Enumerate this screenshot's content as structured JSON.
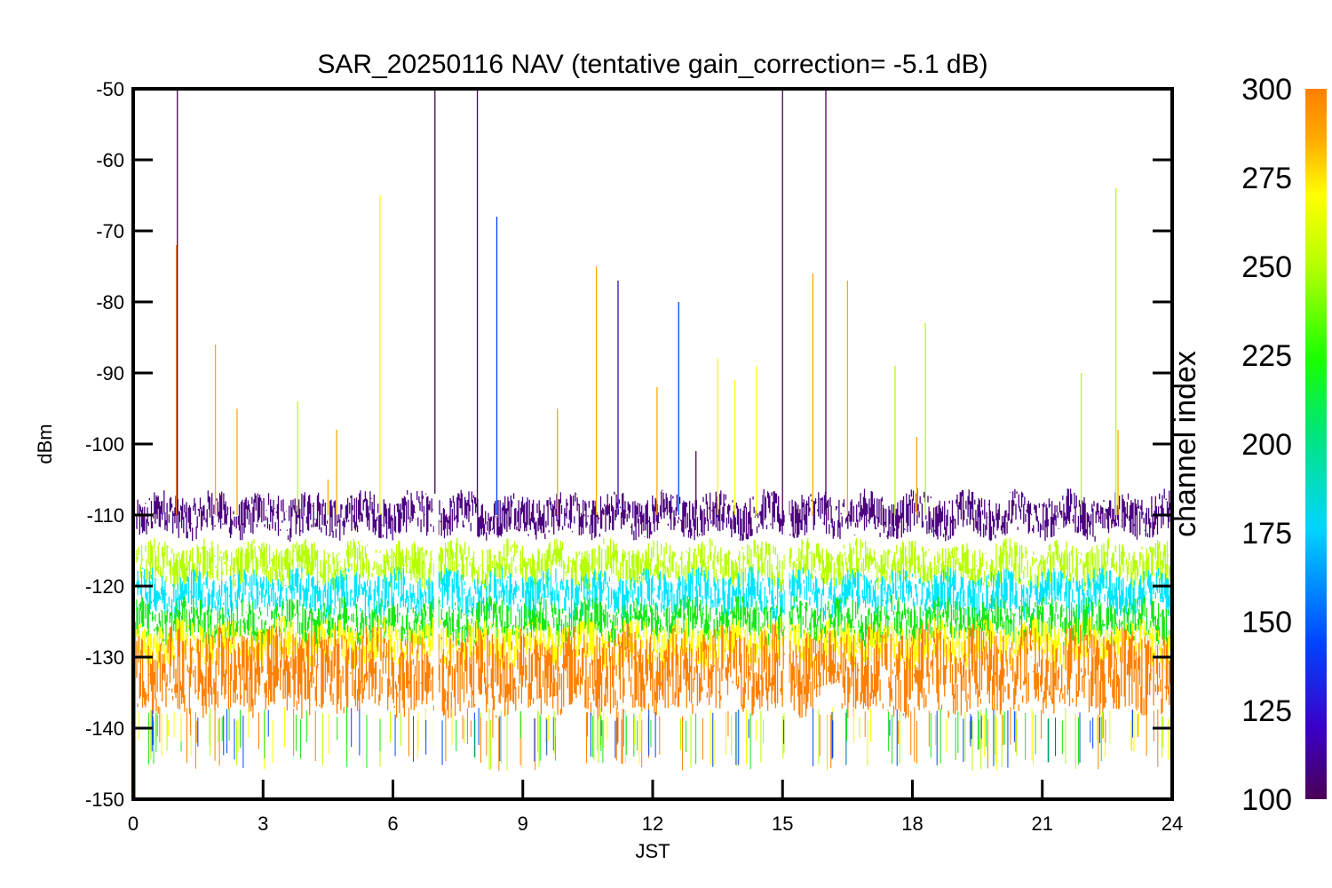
{
  "chart_data": {
    "type": "line",
    "title": "SAR_20250116 NAV (tentative gain_correction= -5.1 dB)",
    "xlabel": "JST",
    "ylabel": "dBm",
    "xlim": [
      0,
      24
    ],
    "ylim": [
      -150,
      -50
    ],
    "x_ticks": [
      "0",
      "3",
      "6",
      "9",
      "12",
      "15",
      "18",
      "21",
      "24"
    ],
    "y_ticks": [
      "-50",
      "-60",
      "-70",
      "-80",
      "-90",
      "-100",
      "-110",
      "-120",
      "-130",
      "-140",
      "-150"
    ],
    "data_gaps_x": [
      7.0,
      15.1
    ],
    "colorbar": {
      "title": "channel index",
      "min": 100,
      "max": 300,
      "ticks": [
        "300",
        "275",
        "250",
        "225",
        "200",
        "175",
        "150",
        "125",
        "100"
      ],
      "colormap": [
        "#4b0055",
        "#3b00c8",
        "#0044ff",
        "#00d4ff",
        "#00e676",
        "#19ff00",
        "#b6ff00",
        "#ffff00",
        "#ffaa00",
        "#ff7f00"
      ]
    },
    "series": [
      {
        "channel_index": 110,
        "color": "#4b0080",
        "median_dBm": -110,
        "spread_dBm": 3
      },
      {
        "channel_index": 255,
        "color": "#b6ff00",
        "median_dBm": -117,
        "spread_dBm": 3
      },
      {
        "channel_index": 180,
        "color": "#00e5ff",
        "median_dBm": -121,
        "spread_dBm": 3
      },
      {
        "channel_index": 215,
        "color": "#19e619",
        "median_dBm": -125,
        "spread_dBm": 3
      },
      {
        "channel_index": 275,
        "color": "#ffff00",
        "median_dBm": -128,
        "spread_dBm": 3
      },
      {
        "channel_index": 295,
        "color": "#ff8000",
        "median_dBm": -132,
        "spread_dBm": 6
      }
    ],
    "spikes": [
      {
        "x": 0.05,
        "y_top": -150,
        "channel_index": 295
      },
      {
        "x": 1.0,
        "y_top": -72,
        "channel_index": 300
      },
      {
        "x": 1.02,
        "y_top": -50,
        "channel_index": 110
      },
      {
        "x": 1.9,
        "y_top": -86,
        "channel_index": 270
      },
      {
        "x": 2.4,
        "y_top": -95,
        "channel_index": 270
      },
      {
        "x": 3.8,
        "y_top": -94,
        "channel_index": 230
      },
      {
        "x": 4.5,
        "y_top": -105,
        "channel_index": 270
      },
      {
        "x": 4.7,
        "y_top": -98,
        "channel_index": 270
      },
      {
        "x": 5.7,
        "y_top": -65,
        "channel_index": 245
      },
      {
        "x": 6.97,
        "y_top": -50,
        "channel_index": 110
      },
      {
        "x": 7.95,
        "y_top": -50,
        "channel_index": 110
      },
      {
        "x": 8.4,
        "y_top": -68,
        "channel_index": 140
      },
      {
        "x": 9.8,
        "y_top": -95,
        "channel_index": 270
      },
      {
        "x": 10.7,
        "y_top": -75,
        "channel_index": 270
      },
      {
        "x": 11.2,
        "y_top": -77,
        "channel_index": 120
      },
      {
        "x": 12.1,
        "y_top": -92,
        "channel_index": 270
      },
      {
        "x": 12.6,
        "y_top": -80,
        "channel_index": 140
      },
      {
        "x": 13.0,
        "y_top": -101,
        "channel_index": 110
      },
      {
        "x": 13.5,
        "y_top": -88,
        "channel_index": 250
      },
      {
        "x": 13.9,
        "y_top": -91,
        "channel_index": 250
      },
      {
        "x": 14.4,
        "y_top": -89,
        "channel_index": 250
      },
      {
        "x": 15.0,
        "y_top": -50,
        "channel_index": 110
      },
      {
        "x": 15.7,
        "y_top": -76,
        "channel_index": 270
      },
      {
        "x": 16.0,
        "y_top": -50,
        "channel_index": 110
      },
      {
        "x": 16.5,
        "y_top": -77,
        "channel_index": 270
      },
      {
        "x": 17.6,
        "y_top": -89,
        "channel_index": 235
      },
      {
        "x": 18.3,
        "y_top": -83,
        "channel_index": 235
      },
      {
        "x": 18.1,
        "y_top": -99,
        "channel_index": 270
      },
      {
        "x": 21.9,
        "y_top": -90,
        "channel_index": 230
      },
      {
        "x": 22.7,
        "y_top": -64,
        "channel_index": 235
      },
      {
        "x": 22.75,
        "y_top": -98,
        "channel_index": 270
      }
    ]
  }
}
